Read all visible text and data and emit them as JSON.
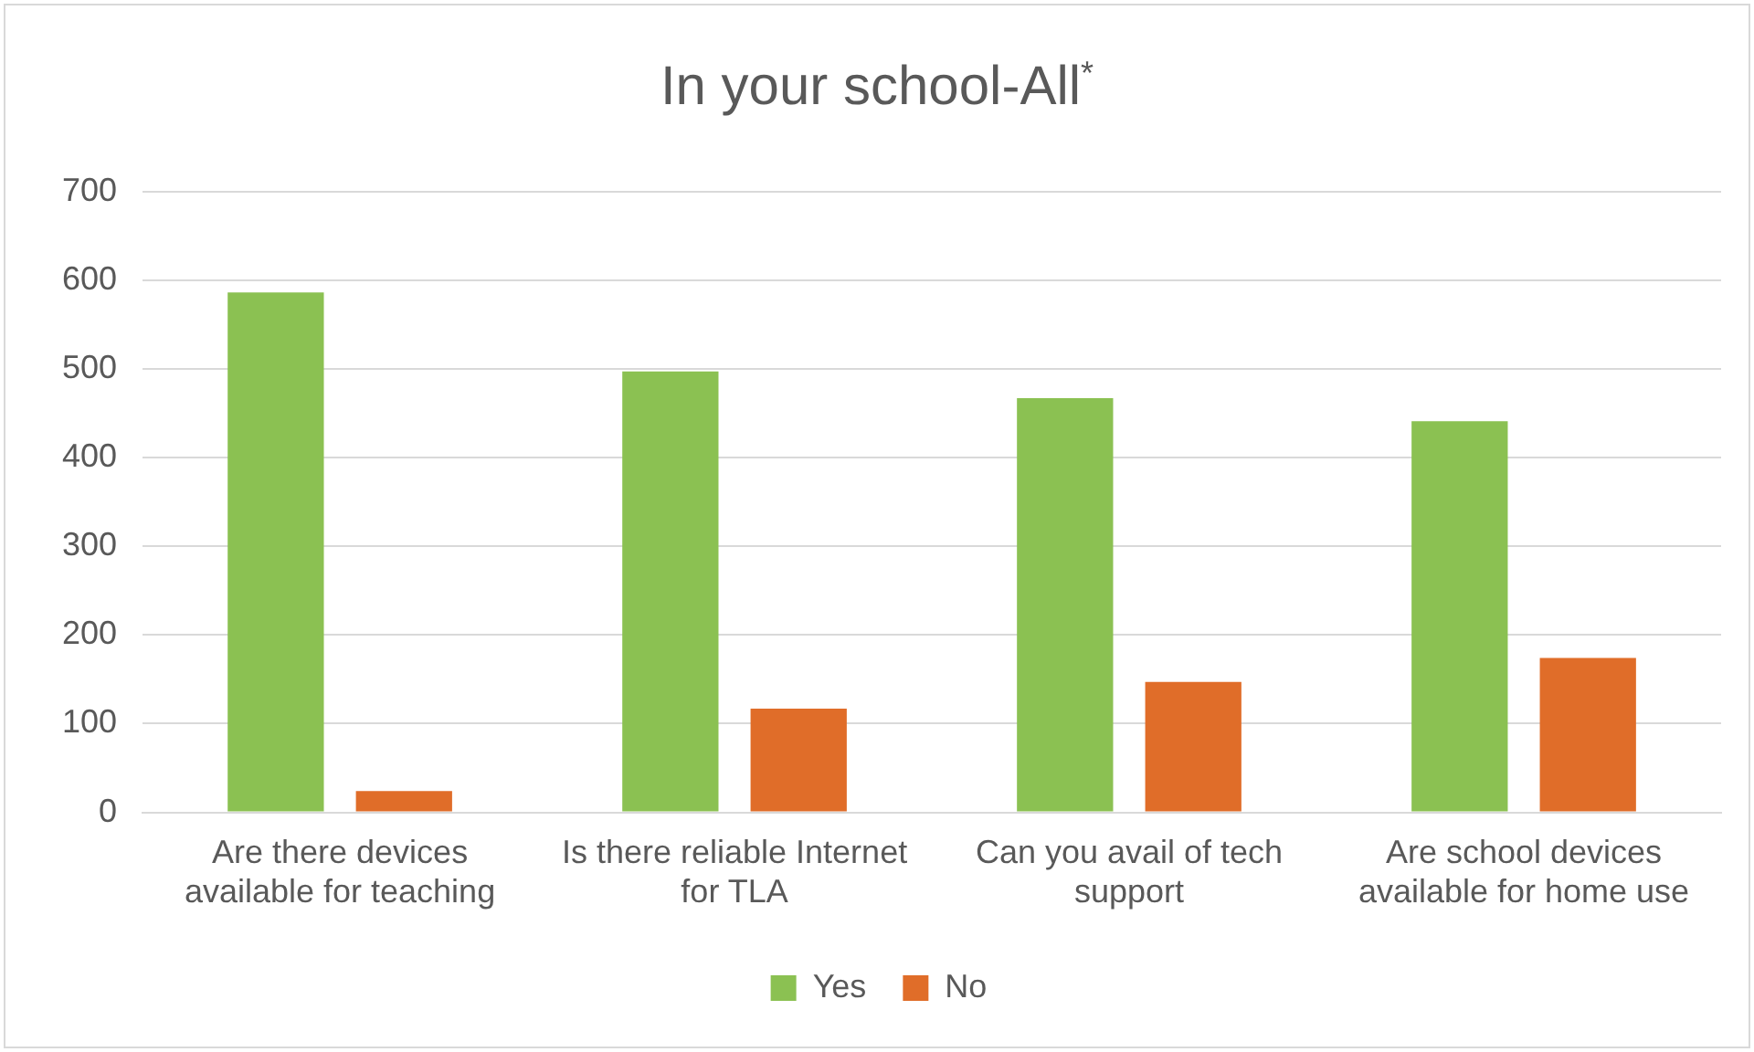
{
  "chart_data": {
    "type": "bar",
    "title": "In your school-All$^{*}$",
    "categories": [
      "Are there devices available for teaching",
      "Is there reliable Internet for TLA",
      "Can you avail of tech support",
      "Are school devices available for home use"
    ],
    "series": [
      {
        "name": "Yes",
        "color": "#8bc152",
        "values": [
          586,
          497,
          467,
          441
        ]
      },
      {
        "name": "No",
        "color": "#e06d29",
        "values": [
          24,
          117,
          147,
          174
        ]
      }
    ],
    "ylim": [
      0,
      700
    ],
    "yticks": [
      0,
      100,
      200,
      300,
      400,
      500,
      600,
      700
    ],
    "grid": "y",
    "legend": "bottom"
  }
}
